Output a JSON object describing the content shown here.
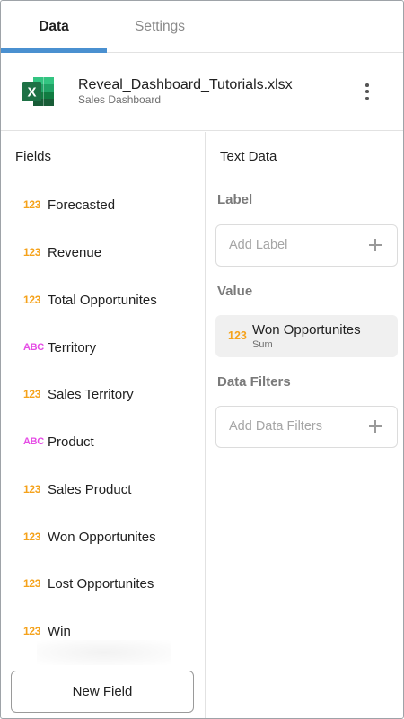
{
  "tabs": {
    "data": "Data",
    "settings": "Settings"
  },
  "file": {
    "name": "Reveal_Dashboard_Tutorials.xlsx",
    "subtitle": "Sales Dashboard",
    "icon": "excel-icon",
    "icon_letter": "X",
    "icon_color": "#1e7145"
  },
  "fields_panel": {
    "title": "Fields",
    "items": [
      {
        "type": "123",
        "label": "Forecasted"
      },
      {
        "type": "123",
        "label": "Revenue"
      },
      {
        "type": "123",
        "label": "Total Opportunites"
      },
      {
        "type": "ABC",
        "label": "Territory"
      },
      {
        "type": "123",
        "label": "Sales Territory"
      },
      {
        "type": "ABC",
        "label": "Product"
      },
      {
        "type": "123",
        "label": "Sales Product"
      },
      {
        "type": "123",
        "label": "Won Opportunites"
      },
      {
        "type": "123",
        "label": "Lost Opportunites"
      },
      {
        "type": "123",
        "label": "Win"
      }
    ],
    "new_field_label": "New Field"
  },
  "config_panel": {
    "title": "Text Data",
    "label_section": "Label",
    "label_placeholder": "Add Label",
    "value_section": "Value",
    "value_field": {
      "type": "123",
      "name": "Won Opportunites",
      "aggregation": "Sum"
    },
    "filters_section": "Data Filters",
    "filters_placeholder": "Add Data Filters"
  },
  "colors": {
    "accent": "#4a90d0",
    "numeric_type": "#f5a21b",
    "text_type": "#e54ce5"
  }
}
